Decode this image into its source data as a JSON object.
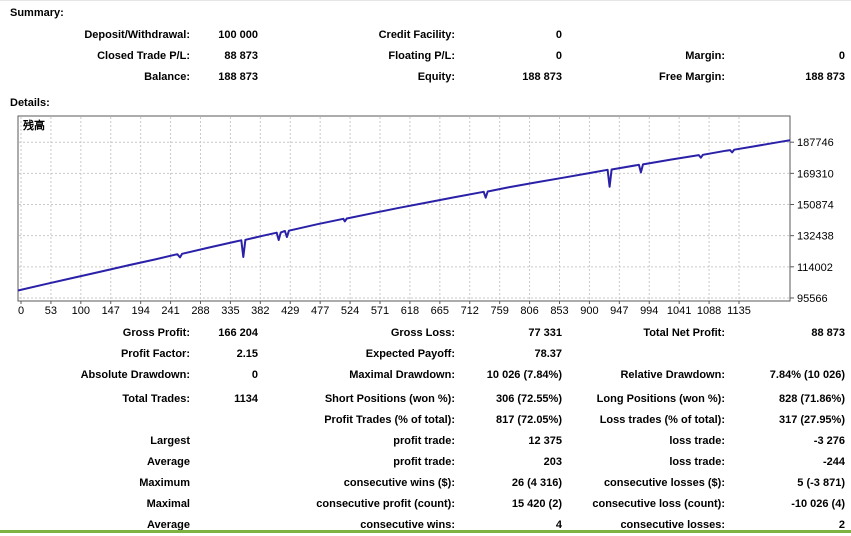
{
  "summary": {
    "heading": "Summary:",
    "rows": [
      [
        "Deposit/Withdrawal:",
        "100 000",
        "Credit Facility:",
        "0",
        "",
        ""
      ],
      [
        "Closed Trade P/L:",
        "88 873",
        "Floating P/L:",
        "0",
        "Margin:",
        "0"
      ],
      [
        "Balance:",
        "188 873",
        "Equity:",
        "188 873",
        "Free Margin:",
        "188 873"
      ]
    ]
  },
  "details": {
    "heading": "Details:",
    "profit_rows": [
      [
        "Gross Profit:",
        "166 204",
        "Gross Loss:",
        "77 331",
        "Total Net Profit:",
        "88 873"
      ],
      [
        "Profit Factor:",
        "2.15",
        "Expected Payoff:",
        "78.37",
        "",
        ""
      ],
      [
        "Absolute Drawdown:",
        "0",
        "Maximal Drawdown:",
        "10 026 (7.84%)",
        "Relative Drawdown:",
        "7.84% (10 026)"
      ]
    ],
    "trade_rows": [
      [
        "Total Trades:",
        "1134",
        "Short Positions (won %):",
        "306 (72.55%)",
        "Long Positions (won %):",
        "828 (71.86%)"
      ],
      [
        "",
        "",
        "Profit Trades (% of total):",
        "817 (72.05%)",
        "Loss trades (% of total):",
        "317 (27.95%)"
      ],
      [
        "Largest",
        "",
        "profit trade:",
        "12 375",
        "loss trade:",
        "-3 276"
      ],
      [
        "Average",
        "",
        "profit trade:",
        "203",
        "loss trade:",
        "-244"
      ],
      [
        "Maximum",
        "",
        "consecutive wins ($):",
        "26 (4 316)",
        "consecutive losses ($):",
        "5 (-3 871)"
      ],
      [
        "Maximal",
        "",
        "consecutive profit (count):",
        "15 420 (2)",
        "consecutive loss (count):",
        "-10 026 (4)"
      ],
      [
        "Average",
        "",
        "consecutive wins:",
        "4",
        "consecutive losses:",
        "2"
      ]
    ]
  },
  "chart_data": {
    "type": "line",
    "title": "残高",
    "series_name": "Balance",
    "x_ticks": [
      0,
      53,
      100,
      147,
      194,
      241,
      288,
      335,
      382,
      429,
      477,
      524,
      571,
      618,
      665,
      712,
      759,
      806,
      853,
      900,
      947,
      994,
      1041,
      1088,
      1135
    ],
    "y_ticks": [
      95566,
      114002,
      132438,
      150874,
      169310,
      187746
    ],
    "xlim": [
      0,
      1134
    ],
    "ylim": [
      93780,
      203250
    ],
    "grid": true,
    "legend_position": "none",
    "points": [
      [
        0,
        100000
      ],
      [
        40,
        103700
      ],
      [
        80,
        107400
      ],
      [
        120,
        111000
      ],
      [
        160,
        114700
      ],
      [
        200,
        118300
      ],
      [
        234,
        121500
      ],
      [
        238,
        119600
      ],
      [
        241,
        121700
      ],
      [
        280,
        125400
      ],
      [
        320,
        129000
      ],
      [
        328,
        129700
      ],
      [
        331,
        119800
      ],
      [
        334,
        130000
      ],
      [
        360,
        132400
      ],
      [
        380,
        134200
      ],
      [
        383,
        129900
      ],
      [
        386,
        134400
      ],
      [
        392,
        135200
      ],
      [
        395,
        131600
      ],
      [
        398,
        135400
      ],
      [
        440,
        139200
      ],
      [
        478,
        142400
      ],
      [
        480,
        140900
      ],
      [
        483,
        142600
      ],
      [
        520,
        145700
      ],
      [
        560,
        148900
      ],
      [
        600,
        152000
      ],
      [
        640,
        155100
      ],
      [
        684,
        158400
      ],
      [
        687,
        154900
      ],
      [
        690,
        158600
      ],
      [
        720,
        161000
      ],
      [
        760,
        163900
      ],
      [
        800,
        166700
      ],
      [
        840,
        169500
      ],
      [
        866,
        171400
      ],
      [
        869,
        161400
      ],
      [
        872,
        171600
      ],
      [
        912,
        174400
      ],
      [
        915,
        169900
      ],
      [
        918,
        174600
      ],
      [
        960,
        177500
      ],
      [
        1000,
        180100
      ],
      [
        1003,
        178600
      ],
      [
        1006,
        180300
      ],
      [
        1040,
        182700
      ],
      [
        1046,
        183100
      ],
      [
        1049,
        181700
      ],
      [
        1052,
        183300
      ],
      [
        1080,
        185200
      ],
      [
        1120,
        188000
      ],
      [
        1134,
        188873
      ]
    ]
  },
  "colors": {
    "line": "#2A21A8",
    "grid": "#c9c9c9",
    "chart_border": "#5a5a5a",
    "accent_green": "#7CB342"
  }
}
